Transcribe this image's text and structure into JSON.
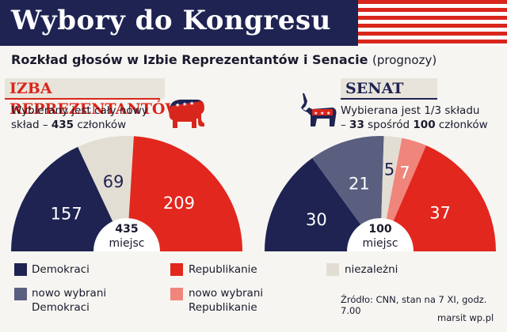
{
  "header": {
    "title": "Wybory do Kongresu"
  },
  "subtitle": {
    "main": "Rozkład głosów w Izbie Reprezentantów i Senacie",
    "note": "(prognozy)"
  },
  "house": {
    "label": "IZBA REPREZENTANTÓW",
    "desc_line1": "Wybierany jest cały nowy",
    "desc_line2_pre": "skład – ",
    "desc_line2_num": "435",
    "desc_line2_post": " członków",
    "center_number": "435",
    "center_unit": "miejsc"
  },
  "senate": {
    "label": "SENAT",
    "desc_line1": "Wybierana jest 1/3 składu",
    "desc_line2_pre": "– ",
    "desc_line2_num1": "33",
    "desc_line2_mid": " spośród ",
    "desc_line2_num2": "100",
    "desc_line2_post": " członków",
    "center_number": "100",
    "center_unit": "miejsc"
  },
  "colors": {
    "democrats": "#1e2352",
    "new_democrats": "#5a5f80",
    "independents": "#e3ded4",
    "republicans": "#e2271e",
    "new_republicans": "#f0857c",
    "navy": "#1e2352",
    "red": "#d9261c"
  },
  "chart_data": [
    {
      "type": "pie",
      "title": "IZBA REPREZENTANTÓW",
      "total": 435,
      "slices": [
        {
          "name": "Demokraci",
          "value": 157,
          "color": "#1e2352",
          "label_color": "#ffffff"
        },
        {
          "name": "niezależni",
          "value": 69,
          "color": "#e3ded4",
          "label_color": "#1e2352"
        },
        {
          "name": "Republikanie",
          "value": 209,
          "color": "#e2271e",
          "label_color": "#ffffff"
        }
      ]
    },
    {
      "type": "pie",
      "title": "SENAT",
      "total": 100,
      "slices": [
        {
          "name": "Demokraci",
          "value": 30,
          "color": "#1e2352",
          "label_color": "#ffffff"
        },
        {
          "name": "nowo wybrani Demokraci",
          "value": 21,
          "color": "#5a5f80",
          "label_color": "#ffffff"
        },
        {
          "name": "niezależni",
          "value": 5,
          "color": "#e3ded4",
          "label_color": "#1e2352"
        },
        {
          "name": "nowo wybrani Republikanie",
          "value": 7,
          "color": "#f0857c",
          "label_color": "#ffffff"
        },
        {
          "name": "Republikanie",
          "value": 37,
          "color": "#e2271e",
          "label_color": "#ffffff"
        }
      ]
    }
  ],
  "legend": {
    "democrats": "Demokraci",
    "republicans": "Republikanie",
    "independents": "niezależni",
    "new_democrats_1": "nowo wybrani",
    "new_democrats_2": "Demokraci",
    "new_republicans_1": "nowo wybrani",
    "new_republicans_2": "Republikanie"
  },
  "source": "Źródło: CNN, stan na 7 XI, godz. 7.00",
  "credit": "marsit wp.pl",
  "icons": {
    "elephant": "republican-elephant-icon",
    "donkey": "democrat-donkey-icon",
    "flag": "us-flag-stripes"
  }
}
